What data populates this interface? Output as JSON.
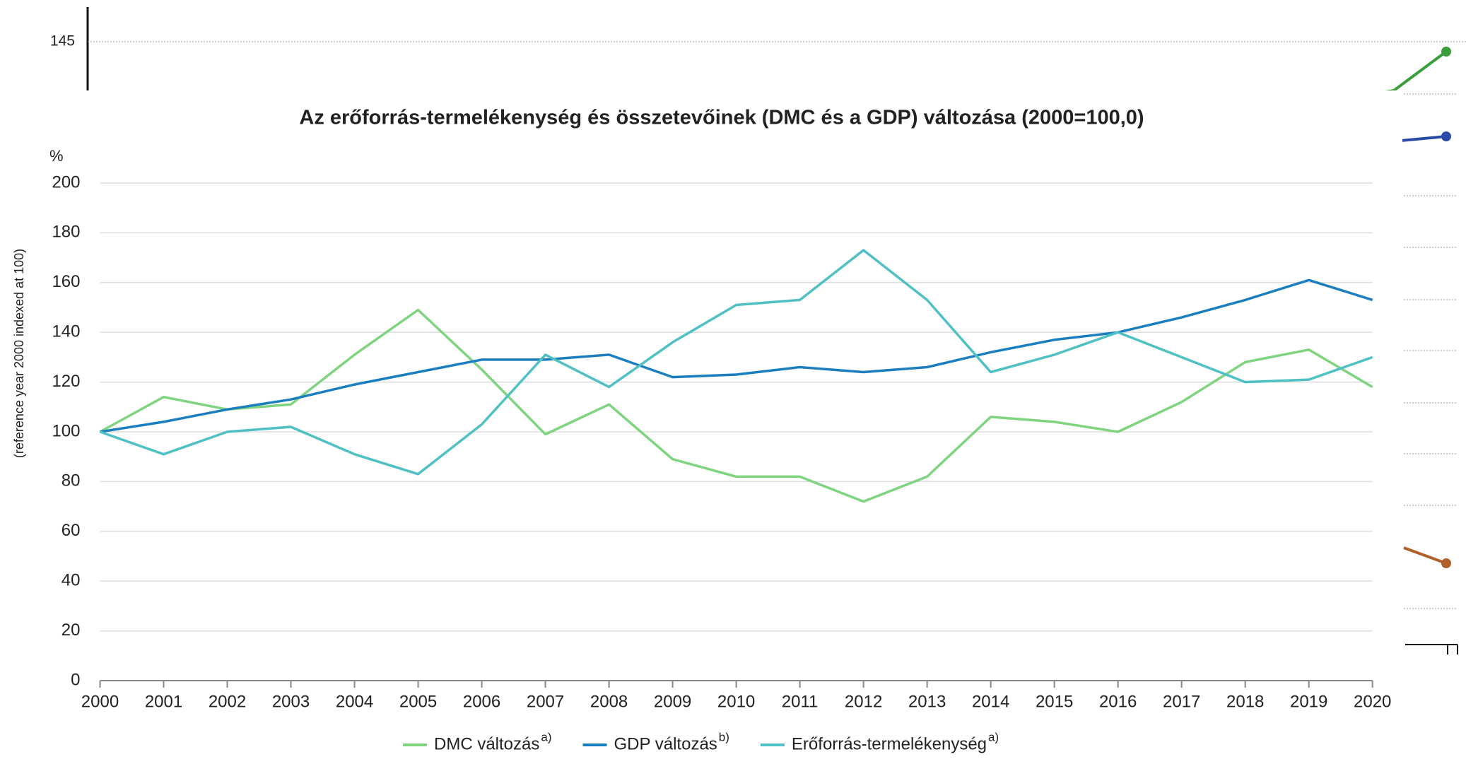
{
  "background_chart": {
    "yticks": [
      145
    ]
  },
  "chart_data": {
    "type": "line",
    "title": "Az erőforrás-termelékenység és összetevőinek (DMC és a GDP) változása (2000=100,0)",
    "y_unit": "%",
    "y_label": "(reference year 2000 indexed at 100)",
    "categories": [
      "2000",
      "2001",
      "2002",
      "2003",
      "2004",
      "2005",
      "2006",
      "2007",
      "2008",
      "2009",
      "2010",
      "2011",
      "2012",
      "2013",
      "2014",
      "2015",
      "2016",
      "2017",
      "2018",
      "2019",
      "2020"
    ],
    "series": [
      {
        "name": "DMC változás",
        "note": "a)",
        "color": "#7fd47f",
        "values": [
          100,
          114,
          109,
          111,
          131,
          149,
          125,
          99,
          111,
          89,
          82,
          82,
          72,
          82,
          106,
          104,
          100,
          112,
          128,
          133,
          118
        ]
      },
      {
        "name": "GDP változás",
        "note": "b)",
        "color": "#1b7fbf",
        "values": [
          100,
          104,
          109,
          113,
          119,
          124,
          129,
          129,
          131,
          122,
          123,
          126,
          124,
          126,
          132,
          137,
          140,
          146,
          153,
          161,
          153
        ]
      },
      {
        "name": "Erőforrás-termelékenység",
        "note": "a)",
        "color": "#4fc0c4",
        "values": [
          100,
          91,
          100,
          102,
          91,
          83,
          103,
          131,
          118,
          136,
          151,
          153,
          173,
          153,
          124,
          131,
          140,
          130,
          120,
          121,
          130
        ]
      }
    ],
    "ylim": [
      0,
      200
    ],
    "yticks": [
      0,
      20,
      40,
      60,
      80,
      100,
      120,
      140,
      160,
      180,
      200
    ],
    "grid": true
  }
}
